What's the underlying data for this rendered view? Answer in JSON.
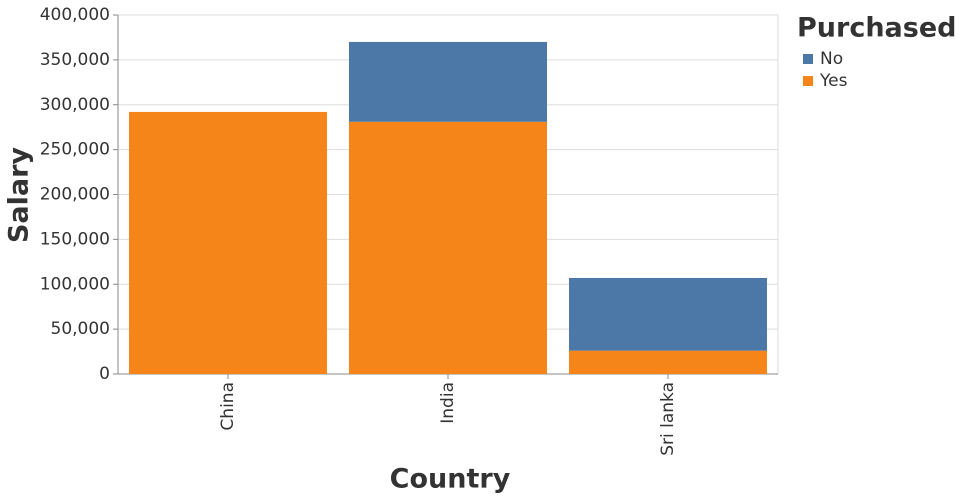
{
  "chart_data": {
    "type": "bar",
    "stacked": true,
    "x_label": "Country",
    "y_label": "Salary",
    "categories": [
      "China",
      "India",
      "Sri lanka"
    ],
    "series": [
      {
        "name": "No",
        "color": "#4c78a8",
        "values": [
          0,
          89000,
          81000
        ]
      },
      {
        "name": "Yes",
        "color": "#f58518",
        "values": [
          292000,
          281000,
          26000
        ]
      }
    ],
    "legend_title": "Purchased",
    "ylim": [
      0,
      400000
    ],
    "yticks": [
      0,
      {
        "value": 50000,
        "label": "50,000"
      },
      {
        "value": 100000,
        "label": "100,000"
      },
      {
        "value": 150000,
        "label": "150,000"
      },
      {
        "value": 200000,
        "label": "200,000"
      },
      {
        "value": 250000,
        "label": "250,000"
      },
      {
        "value": 300000,
        "label": "300,000"
      },
      {
        "value": 350000,
        "label": "350,000"
      },
      {
        "value": 400000,
        "label": "400,000"
      }
    ],
    "grid": true,
    "legend": "right"
  }
}
